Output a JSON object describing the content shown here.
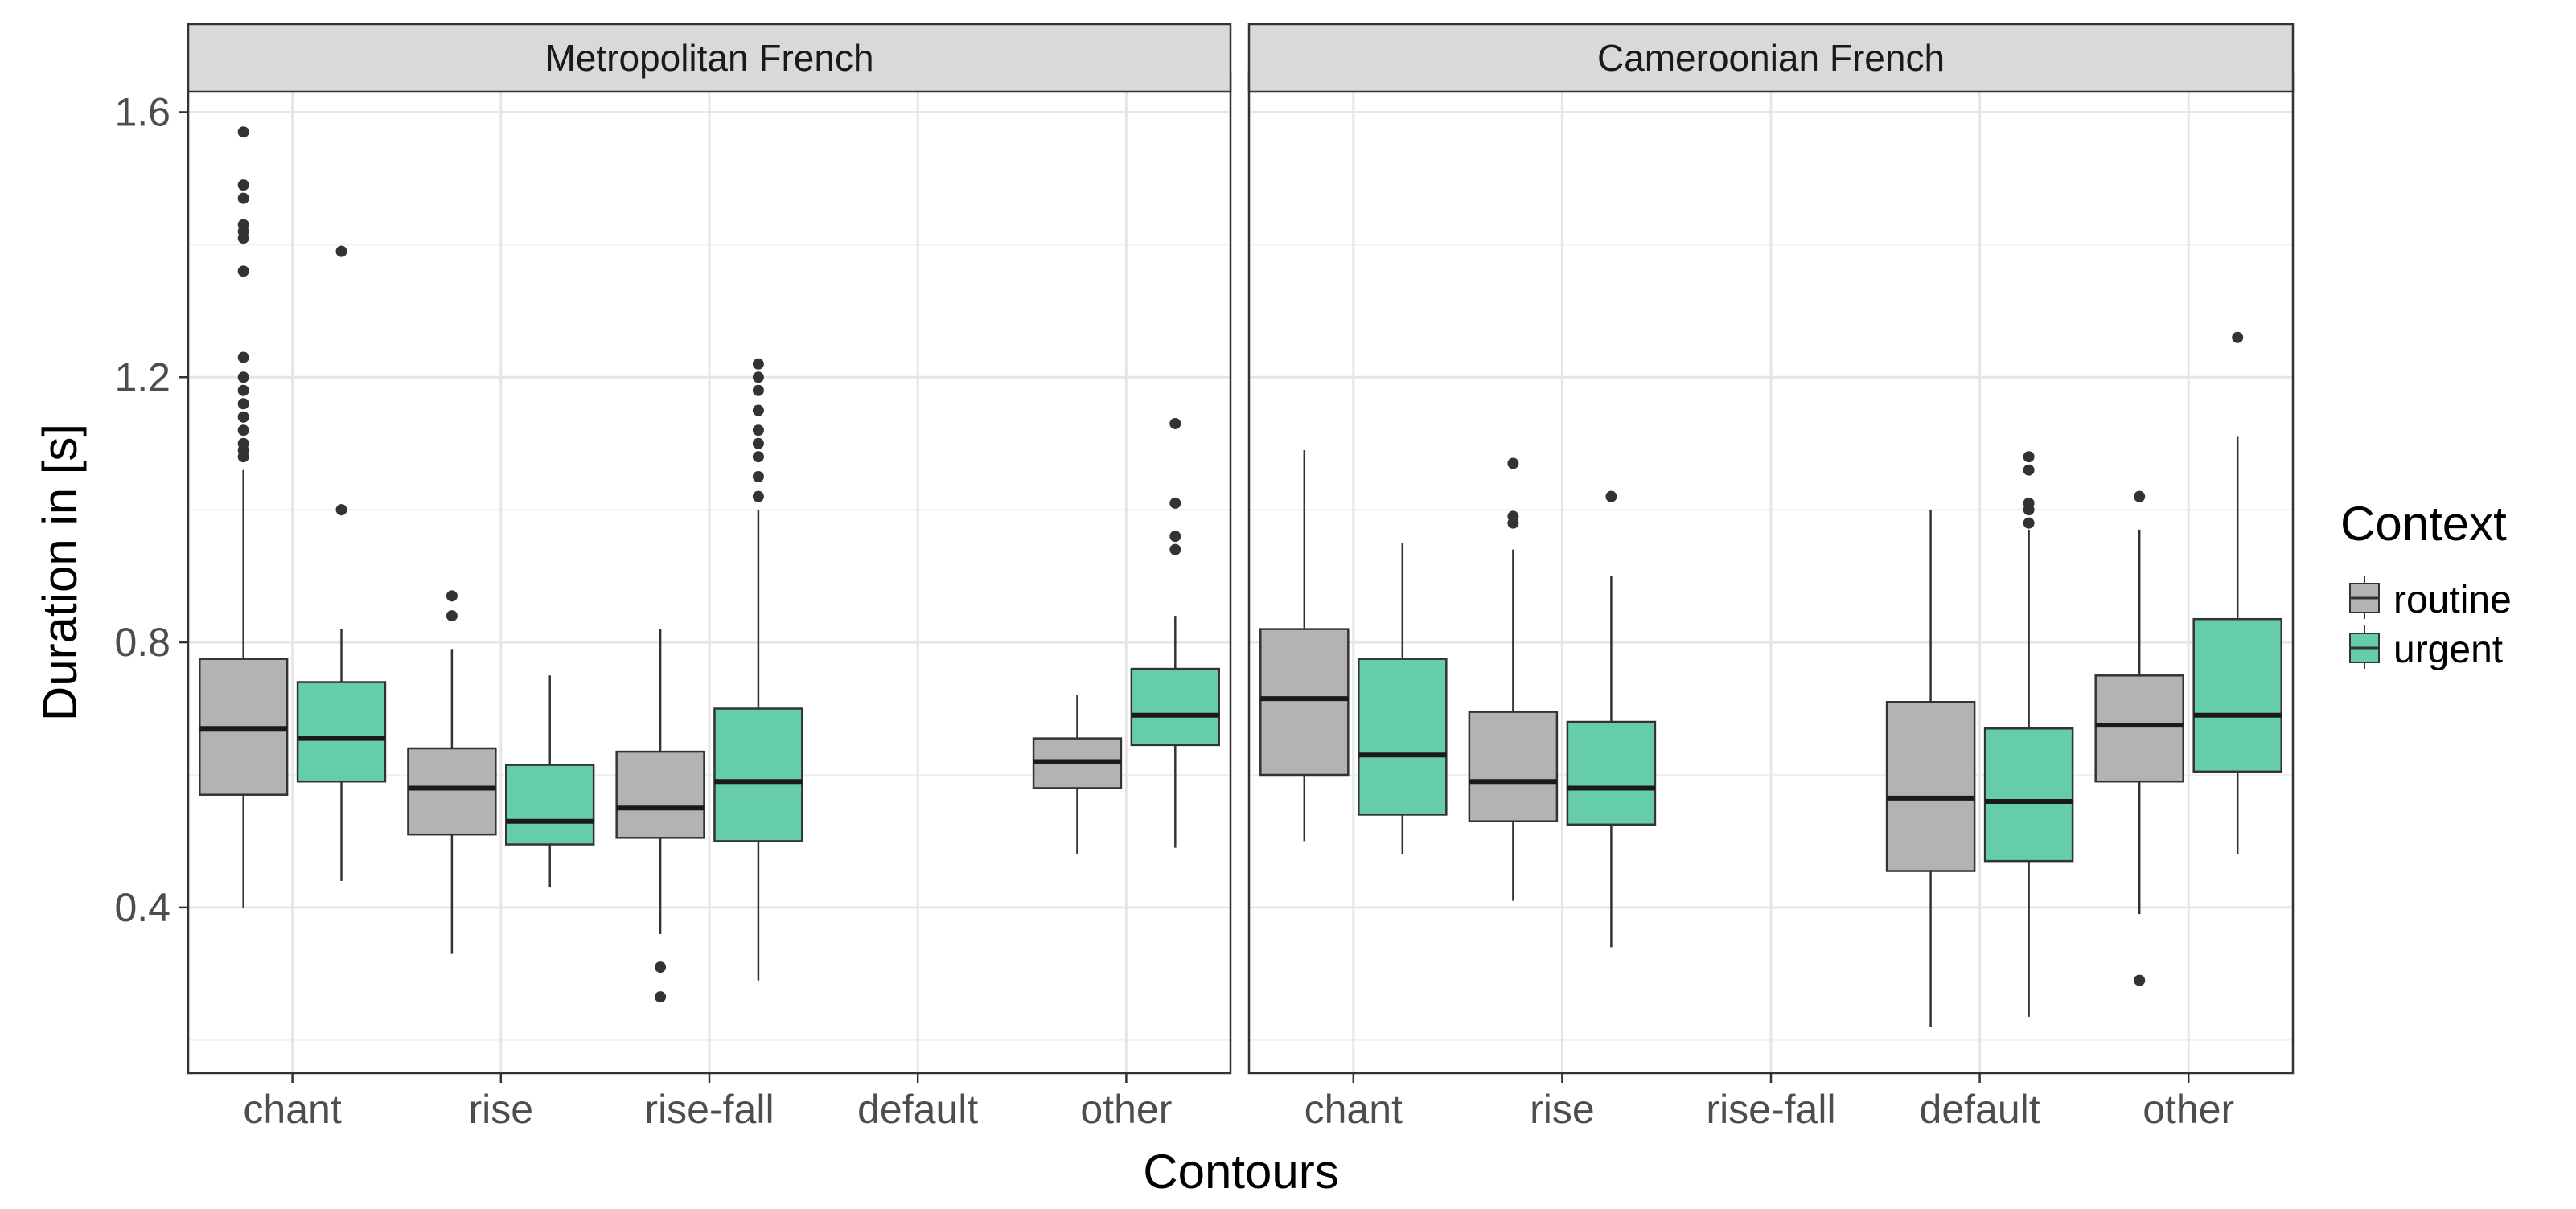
{
  "chart_data": {
    "type": "boxplot",
    "ylabel": "Duration in [s]",
    "xlabel": "Contours",
    "ylim": [
      0.15,
      1.66
    ],
    "y_ticks": [
      0.4,
      0.8,
      1.2,
      1.6
    ],
    "y_minor_ticks": [
      0.2,
      0.6,
      1.0,
      1.4
    ],
    "categories": [
      "chant",
      "rise",
      "rise-fall",
      "default",
      "other"
    ],
    "legend": {
      "title": "Context",
      "items": [
        {
          "key": "routine",
          "label": "routine",
          "color": "#b3b3b3"
        },
        {
          "key": "urgent",
          "label": "urgent",
          "color": "#66cdaa"
        }
      ]
    },
    "panels": [
      {
        "title": "Metropolitan French",
        "boxes": [
          {
            "category": "chant",
            "group": "routine",
            "q1": 0.57,
            "median": 0.67,
            "q3": 0.775,
            "lower": 0.4,
            "upper": 1.06,
            "outliers": [
              1.08,
              1.09,
              1.1,
              1.12,
              1.14,
              1.16,
              1.18,
              1.2,
              1.23,
              1.36,
              1.41,
              1.42,
              1.43,
              1.47,
              1.49,
              1.57
            ]
          },
          {
            "category": "chant",
            "group": "urgent",
            "q1": 0.59,
            "median": 0.655,
            "q3": 0.74,
            "lower": 0.44,
            "upper": 0.82,
            "outliers": [
              1.0,
              1.39
            ]
          },
          {
            "category": "rise",
            "group": "routine",
            "q1": 0.51,
            "median": 0.58,
            "q3": 0.64,
            "lower": 0.33,
            "upper": 0.79,
            "outliers": [
              0.84,
              0.87
            ]
          },
          {
            "category": "rise",
            "group": "urgent",
            "q1": 0.495,
            "median": 0.53,
            "q3": 0.615,
            "lower": 0.43,
            "upper": 0.75,
            "outliers": []
          },
          {
            "category": "rise-fall",
            "group": "routine",
            "q1": 0.505,
            "median": 0.55,
            "q3": 0.635,
            "lower": 0.36,
            "upper": 0.82,
            "outliers": [
              0.265,
              0.31
            ]
          },
          {
            "category": "rise-fall",
            "group": "urgent",
            "q1": 0.5,
            "median": 0.59,
            "q3": 0.7,
            "lower": 0.29,
            "upper": 1.0,
            "outliers": [
              1.02,
              1.05,
              1.08,
              1.1,
              1.12,
              1.15,
              1.18,
              1.2,
              1.22
            ]
          },
          {
            "category": "other",
            "group": "routine",
            "q1": 0.58,
            "median": 0.62,
            "q3": 0.655,
            "lower": 0.48,
            "upper": 0.72,
            "outliers": []
          },
          {
            "category": "other",
            "group": "urgent",
            "q1": 0.645,
            "median": 0.69,
            "q3": 0.76,
            "lower": 0.49,
            "upper": 0.84,
            "outliers": [
              0.94,
              0.96,
              1.01,
              1.13
            ]
          }
        ]
      },
      {
        "title": "Cameroonian French",
        "boxes": [
          {
            "category": "chant",
            "group": "routine",
            "q1": 0.6,
            "median": 0.715,
            "q3": 0.82,
            "lower": 0.5,
            "upper": 1.09,
            "outliers": []
          },
          {
            "category": "chant",
            "group": "urgent",
            "q1": 0.54,
            "median": 0.63,
            "q3": 0.775,
            "lower": 0.48,
            "upper": 0.95,
            "outliers": []
          },
          {
            "category": "rise",
            "group": "routine",
            "q1": 0.53,
            "median": 0.59,
            "q3": 0.695,
            "lower": 0.41,
            "upper": 0.94,
            "outliers": [
              0.98,
              0.99,
              1.07
            ]
          },
          {
            "category": "rise",
            "group": "urgent",
            "q1": 0.525,
            "median": 0.58,
            "q3": 0.68,
            "lower": 0.34,
            "upper": 0.9,
            "outliers": [
              1.02
            ]
          },
          {
            "category": "default",
            "group": "routine",
            "q1": 0.455,
            "median": 0.565,
            "q3": 0.71,
            "lower": 0.22,
            "upper": 1.0,
            "outliers": []
          },
          {
            "category": "default",
            "group": "urgent",
            "q1": 0.47,
            "median": 0.56,
            "q3": 0.67,
            "lower": 0.235,
            "upper": 0.97,
            "outliers": [
              0.98,
              1.0,
              1.01,
              1.06,
              1.08
            ]
          },
          {
            "category": "other",
            "group": "routine",
            "q1": 0.59,
            "median": 0.675,
            "q3": 0.75,
            "lower": 0.39,
            "upper": 0.97,
            "outliers": [
              0.29,
              1.02
            ]
          },
          {
            "category": "other",
            "group": "urgent",
            "q1": 0.605,
            "median": 0.69,
            "q3": 0.835,
            "lower": 0.48,
            "upper": 1.11,
            "outliers": [
              1.26
            ]
          }
        ]
      }
    ]
  }
}
